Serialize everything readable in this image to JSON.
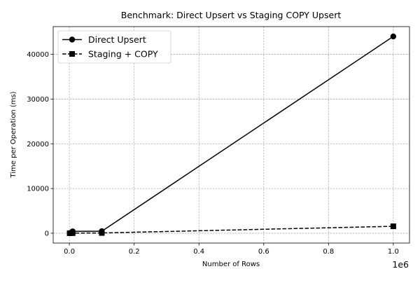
{
  "chart_data": {
    "type": "line",
    "title": "Benchmark: Direct Upsert vs Staging COPY Upsert",
    "xlabel": "Number of Rows",
    "ylabel": "Time per Operation (ms)",
    "x_offset_label": "1e6",
    "xlim": [
      -50000,
      1050000
    ],
    "ylim": [
      -2200,
      46200
    ],
    "x_ticks": [
      0,
      200000,
      400000,
      600000,
      800000,
      1000000
    ],
    "x_tick_labels": [
      "0.0",
      "0.2",
      "0.4",
      "0.6",
      "0.8",
      "1.0"
    ],
    "y_ticks": [
      0,
      10000,
      20000,
      30000,
      40000
    ],
    "y_tick_labels": [
      "0",
      "10000",
      "20000",
      "30000",
      "40000"
    ],
    "grid": true,
    "legend_position": "top-left",
    "x": [
      1000,
      10000,
      100000,
      1000000
    ],
    "series": [
      {
        "name": "Direct Upsert",
        "values": [
          30,
          420,
          450,
          44000
        ],
        "color": "#000000",
        "line_style": "solid",
        "marker": "circle"
      },
      {
        "name": "Staging + COPY",
        "values": [
          5,
          25,
          60,
          1550
        ],
        "color": "#000000",
        "line_style": "dashed",
        "marker": "square"
      }
    ]
  }
}
